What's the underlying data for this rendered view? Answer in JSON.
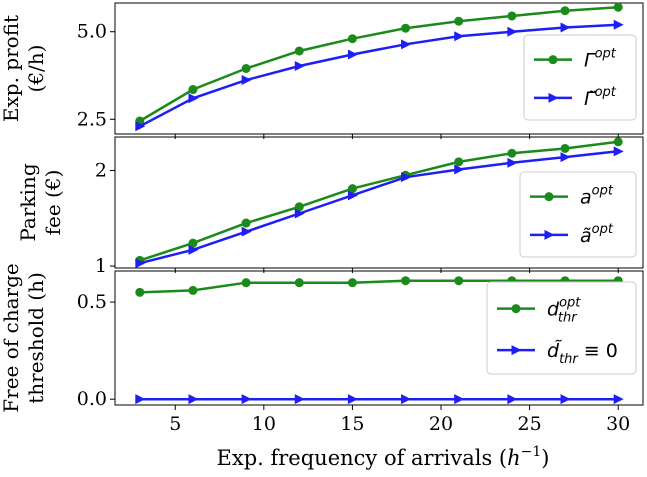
{
  "chart_data": {
    "type": "line",
    "x": [
      3,
      6,
      9,
      12,
      15,
      18,
      21,
      24,
      27,
      30
    ],
    "xlabel_text": "Exp. frequency of arrivals (",
    "xlabel_math": "h",
    "xlabel_sup": "−1",
    "xlabel_close": ")",
    "xlim": [
      1.6,
      31.4
    ],
    "xticks": [
      5,
      10,
      15,
      20,
      25,
      30
    ],
    "xtick_labels": [
      "5",
      "10",
      "15",
      "20",
      "25",
      "30"
    ],
    "colors": {
      "opt": "#1a8a1a",
      "approx": "#1f1ff5"
    },
    "panels": [
      {
        "id": "profit",
        "ylabel": [
          "Exp. profit",
          "(€/h)"
        ],
        "ylim": [
          2.08,
          5.82
        ],
        "yticks": [
          2.5,
          5.0
        ],
        "ytick_labels": [
          "2.5",
          "5.0"
        ],
        "series": [
          {
            "key": "opt",
            "legend_base": "Γ",
            "legend_sup": "opt",
            "legend_sub": "",
            "legend_extra": "",
            "values": [
              2.45,
              3.35,
              3.95,
              4.45,
              4.8,
              5.1,
              5.3,
              5.45,
              5.6,
              5.7
            ]
          },
          {
            "key": "approx",
            "legend_base": "Γ̃",
            "legend_sup": "opt",
            "legend_sub": "",
            "legend_extra": "",
            "values": [
              2.3,
              3.1,
              3.62,
              4.02,
              4.35,
              4.64,
              4.87,
              5.0,
              5.12,
              5.2
            ]
          }
        ]
      },
      {
        "id": "fee",
        "ylabel": [
          "Parking",
          "fee (€)"
        ],
        "ylim": [
          0.98,
          2.35
        ],
        "yticks": [
          1,
          2
        ],
        "ytick_labels": [
          "1",
          "2"
        ],
        "series": [
          {
            "key": "opt",
            "legend_base": "a",
            "legend_sup": "opt",
            "legend_sub": "",
            "legend_extra": "",
            "values": [
              1.06,
              1.24,
              1.45,
              1.62,
              1.81,
              1.95,
              2.09,
              2.18,
              2.23,
              2.3
            ]
          },
          {
            "key": "approx",
            "legend_base": "ã",
            "legend_sup": "opt",
            "legend_sub": "",
            "legend_extra": "",
            "values": [
              1.03,
              1.17,
              1.36,
              1.55,
              1.74,
              1.93,
              2.01,
              2.08,
              2.14,
              2.2
            ]
          }
        ]
      },
      {
        "id": "threshold",
        "ylabel": [
          "Free of charge",
          "threshold (h)"
        ],
        "ylim": [
          -0.03,
          0.66
        ],
        "yticks": [
          0.0,
          0.5
        ],
        "ytick_labels": [
          "0.0",
          "0.5"
        ],
        "series": [
          {
            "key": "opt",
            "legend_base": "d",
            "legend_sup": "opt",
            "legend_sub": "thr",
            "legend_extra": "",
            "values": [
              0.55,
              0.56,
              0.6,
              0.6,
              0.6,
              0.61,
              0.61,
              0.61,
              0.61,
              0.61
            ]
          },
          {
            "key": "approx",
            "legend_base": "d̃",
            "legend_sup": "",
            "legend_sub": "thr",
            "legend_extra": " ≡ 0",
            "values": [
              0,
              0,
              0,
              0,
              0,
              0,
              0,
              0,
              0,
              0
            ]
          }
        ]
      }
    ]
  }
}
